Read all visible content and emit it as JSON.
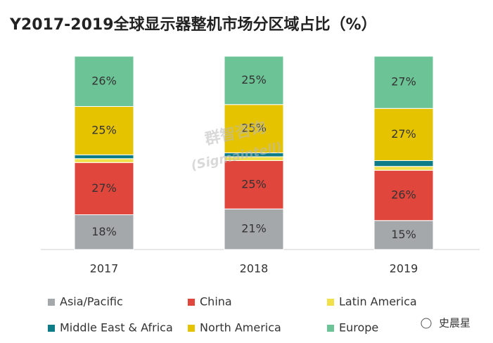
{
  "chart_data": {
    "type": "stacked_bar",
    "title": "Y2017-2019全球显示器整机市场分区域占比（%）",
    "categories": [
      "2017",
      "2018",
      "2019"
    ],
    "series": [
      {
        "name": "Asia/Pacific",
        "color": "#a5a8ab",
        "values": [
          18,
          21,
          15
        ],
        "value_labels": [
          "18%",
          "21%",
          "15%"
        ]
      },
      {
        "name": "China",
        "color": "#e0463c",
        "values": [
          27,
          25,
          26
        ],
        "value_labels": [
          "27%",
          "25%",
          "26%"
        ]
      },
      {
        "name": "Latin America",
        "color": "#f2e04a",
        "values": [
          2,
          2,
          2
        ]
      },
      {
        "name": "Middle East & Africa",
        "color": "#0e7c86",
        "values": [
          2,
          2,
          3
        ]
      },
      {
        "name": "North America",
        "color": "#e6c300",
        "values": [
          25,
          25,
          27
        ],
        "value_labels": [
          "25%",
          "25%",
          "27%"
        ]
      },
      {
        "name": "Europe",
        "color": "#6cc396",
        "values": [
          26,
          25,
          27
        ],
        "value_labels": [
          "26%",
          "25%",
          "27%"
        ]
      }
    ],
    "ylim": [
      0,
      100
    ],
    "legend": "bottom",
    "watermark": [
      "群智咨询",
      "(Sigmaintell)"
    ],
    "source_tag": "史晨星"
  }
}
